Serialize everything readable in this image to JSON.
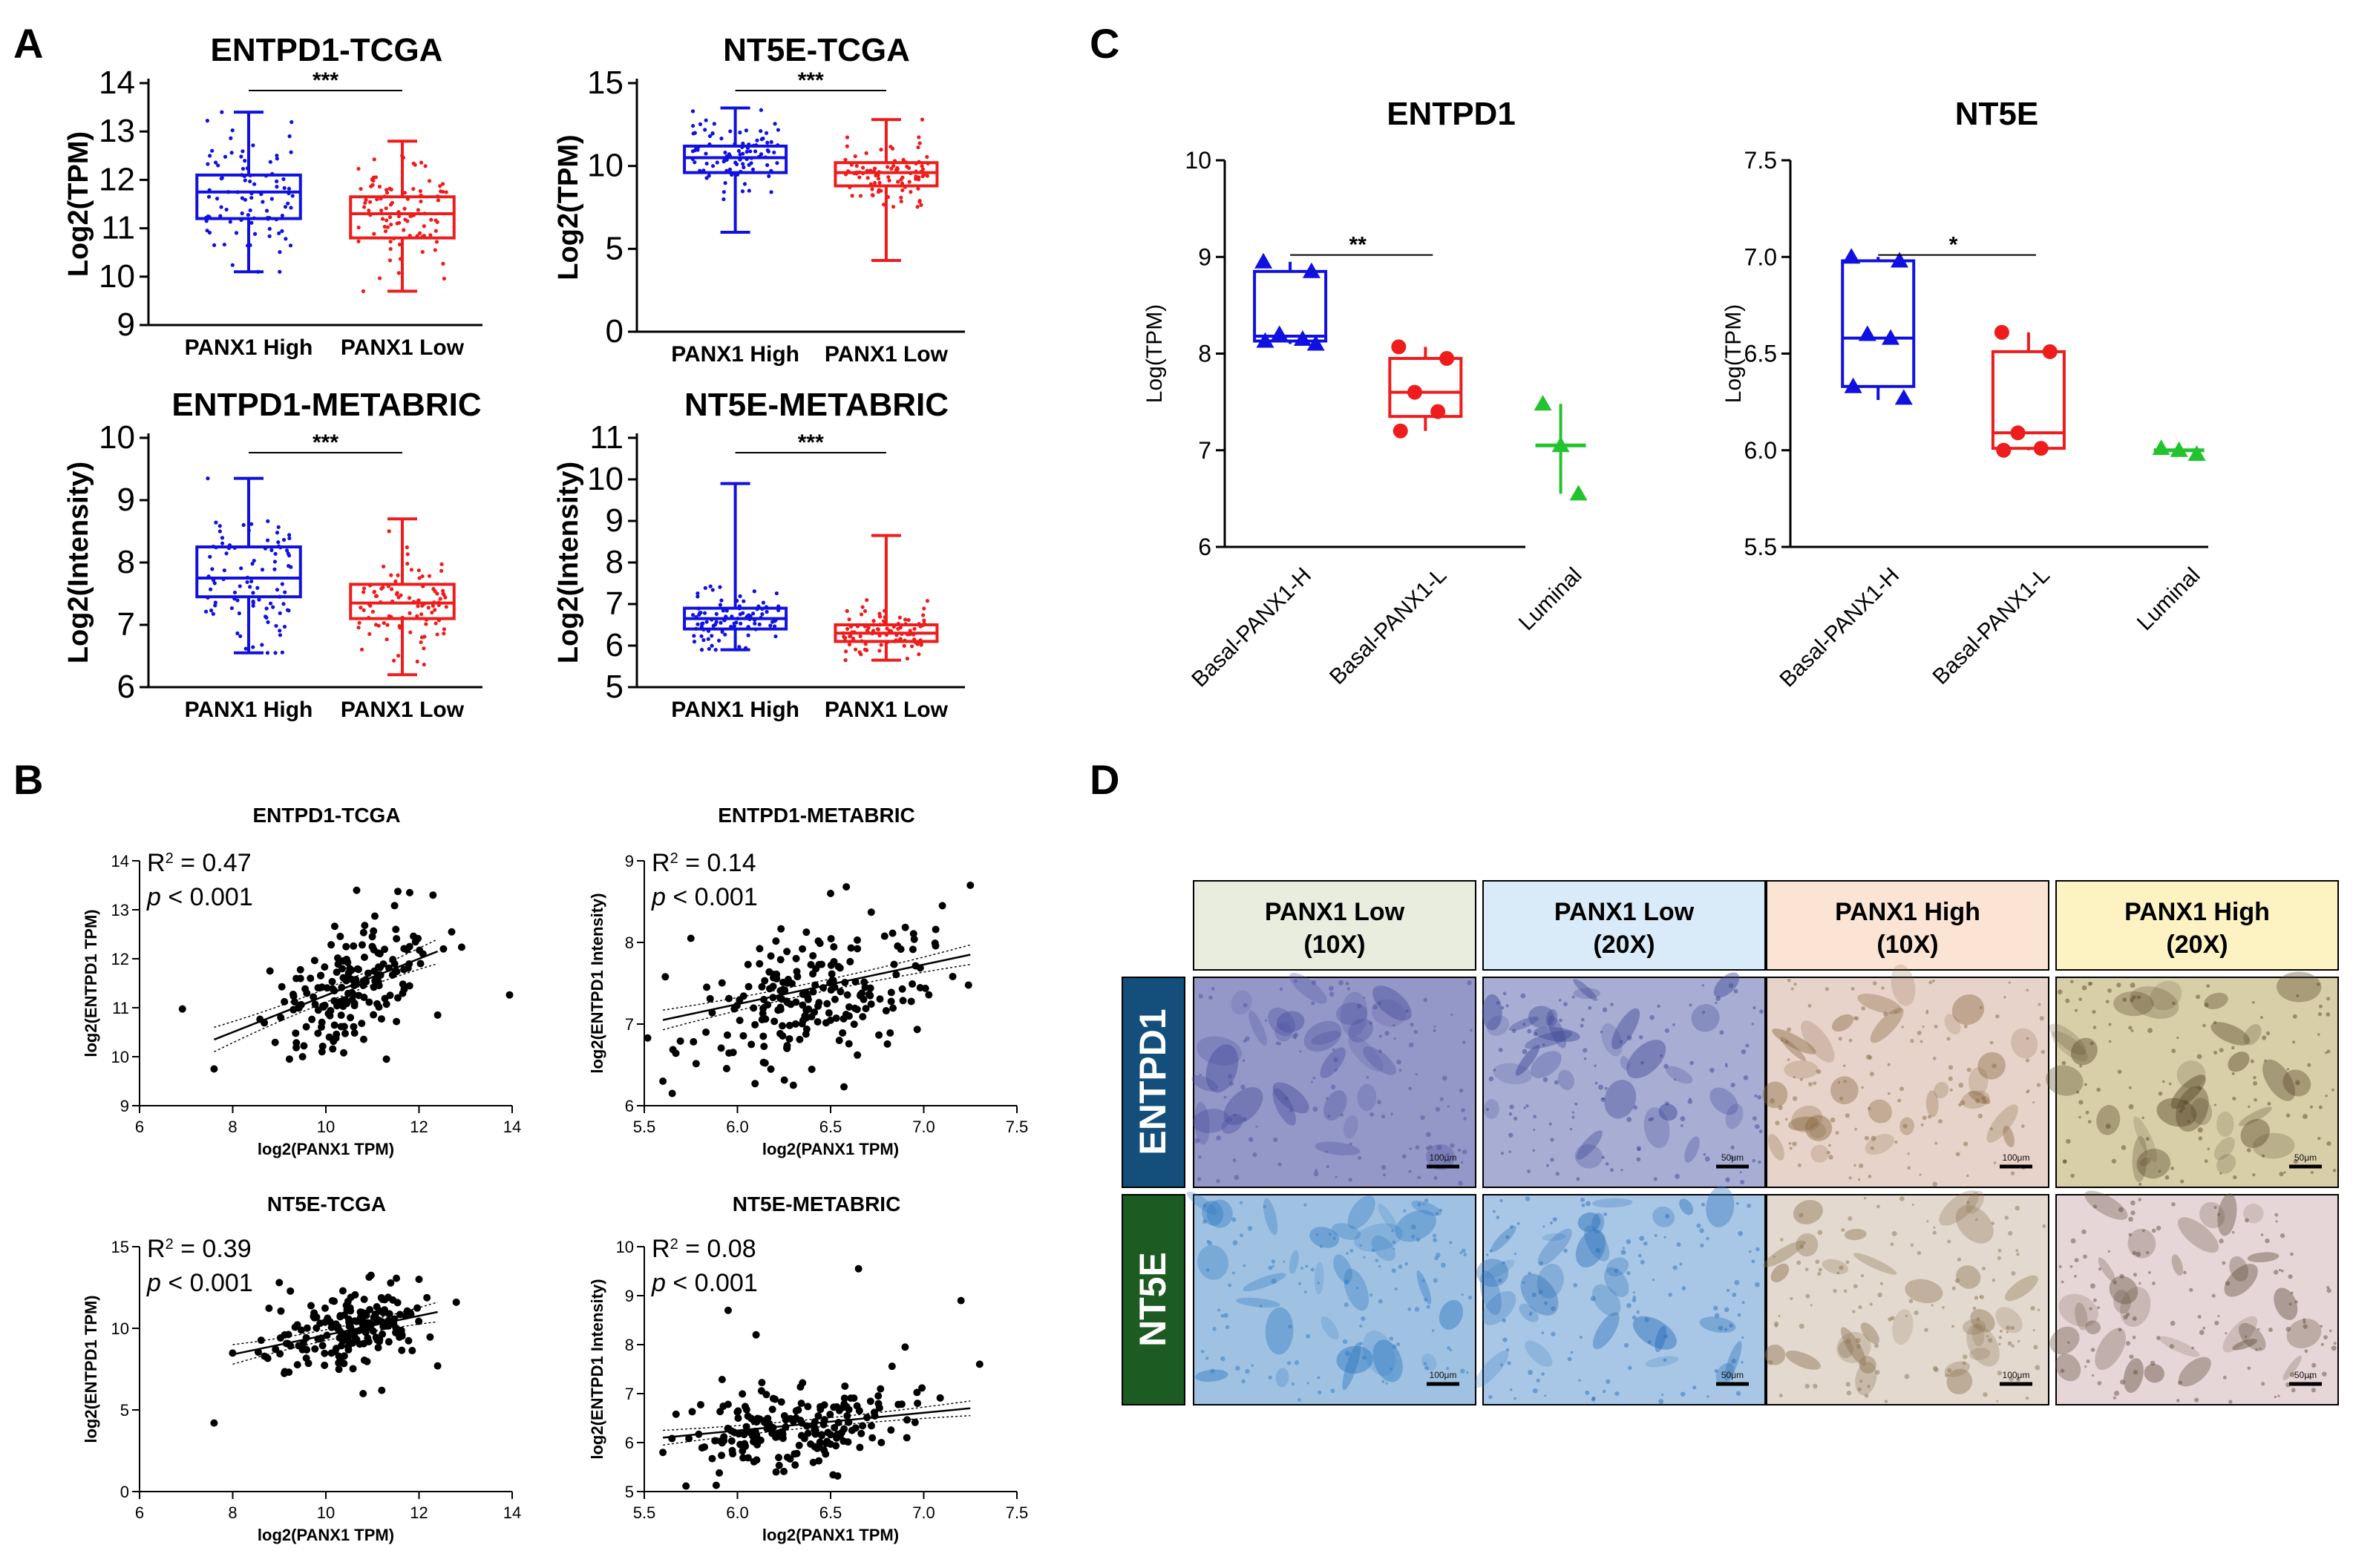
{
  "panel_labels": [
    "A",
    "B",
    "C",
    "D"
  ],
  "colors": {
    "high": "#1010e0",
    "low": "#ee1c1c",
    "luminal": "#22c32e",
    "axis": "#000000"
  },
  "chart_data": [
    {
      "id": "A1",
      "type": "box",
      "title": "ENTPD1-TCGA",
      "xlabel": "",
      "ylabel": "Log2(TPM)",
      "ylim": [
        9,
        14
      ],
      "yticks": [
        "9",
        "10",
        "11",
        "12",
        "13",
        "14"
      ],
      "categories": [
        "PANX1 High",
        "PANX1 Low"
      ],
      "significance": "***",
      "series": [
        {
          "category": "PANX1 High",
          "color": "#1010e0",
          "min": 10.1,
          "q1": 11.2,
          "median": 11.75,
          "q3": 12.1,
          "max": 13.4
        },
        {
          "category": "PANX1 Low",
          "color": "#ee1c1c",
          "min": 9.7,
          "q1": 10.8,
          "median": 11.3,
          "q3": 11.65,
          "max": 12.8
        }
      ]
    },
    {
      "id": "A2",
      "type": "box",
      "title": "NT5E-TCGA",
      "xlabel": "",
      "ylabel": "Log2(TPM)",
      "ylim": [
        0,
        15
      ],
      "yticks": [
        "0",
        "5",
        "10",
        "15"
      ],
      "categories": [
        "PANX1 High",
        "PANX1 Low"
      ],
      "significance": "***",
      "series": [
        {
          "category": "PANX1 High",
          "color": "#1010e0",
          "min": 6.0,
          "q1": 9.6,
          "median": 10.5,
          "q3": 11.2,
          "max": 13.5
        },
        {
          "category": "PANX1 Low",
          "color": "#ee1c1c",
          "min": 4.3,
          "q1": 8.8,
          "median": 9.6,
          "q3": 10.2,
          "max": 12.8
        }
      ]
    },
    {
      "id": "A3",
      "type": "box",
      "title": "ENTPD1-METABRIC",
      "xlabel": "",
      "ylabel": "Log2(Intensity)",
      "ylim": [
        6,
        10
      ],
      "yticks": [
        "6",
        "7",
        "8",
        "9",
        "10"
      ],
      "categories": [
        "PANX1 High",
        "PANX1 Low"
      ],
      "significance": "***",
      "series": [
        {
          "category": "PANX1 High",
          "color": "#1010e0",
          "min": 6.55,
          "q1": 7.45,
          "median": 7.75,
          "q3": 8.25,
          "max": 9.35
        },
        {
          "category": "PANX1 Low",
          "color": "#ee1c1c",
          "min": 6.2,
          "q1": 7.1,
          "median": 7.35,
          "q3": 7.65,
          "max": 8.7
        }
      ]
    },
    {
      "id": "A4",
      "type": "box",
      "title": "NT5E-METABRIC",
      "xlabel": "",
      "ylabel": "Log2(Intensity)",
      "ylim": [
        5,
        11
      ],
      "yticks": [
        "5",
        "6",
        "7",
        "8",
        "9",
        "10",
        "11"
      ],
      "categories": [
        "PANX1 High",
        "PANX1 Low"
      ],
      "significance": "***",
      "series": [
        {
          "category": "PANX1 High",
          "color": "#1010e0",
          "min": 5.9,
          "q1": 6.4,
          "median": 6.65,
          "q3": 6.9,
          "max": 9.9
        },
        {
          "category": "PANX1 Low",
          "color": "#ee1c1c",
          "min": 5.65,
          "q1": 6.1,
          "median": 6.3,
          "q3": 6.5,
          "max": 8.65
        }
      ]
    },
    {
      "id": "B1",
      "type": "scatter",
      "title": "ENTPD1-TCGA",
      "xlabel": "log2(PANX1 TPM)",
      "ylabel": "log2(ENTPD1 TPM)",
      "xlim": [
        6,
        14
      ],
      "ylim": [
        9,
        14
      ],
      "xticks": [
        "6",
        "8",
        "10",
        "12",
        "14"
      ],
      "yticks": [
        "9",
        "10",
        "11",
        "12",
        "13",
        "14"
      ],
      "r2_prefix": "R",
      "r2_value": " = 0.47",
      "p_label": "p",
      "p_value": " < 0.001",
      "fit": {
        "x": [
          7.6,
          12.4
        ],
        "y": [
          10.35,
          12.15
        ],
        "band": 0.25
      },
      "points": {
        "count": 180,
        "x_center": 10.6,
        "x_sd": 0.9,
        "y_intercept": 7.5,
        "slope": 0.375,
        "y_sd": 0.6,
        "seed": 11,
        "extra": [
          [
            7.6,
            9.75
          ],
          [
            12.4,
            10.85
          ],
          [
            12.3,
            13.3
          ],
          [
            8.8,
            11.75
          ],
          [
            9.5,
            10.0
          ],
          [
            11.3,
            9.95
          ],
          [
            11.8,
            13.35
          ]
        ]
      }
    },
    {
      "id": "B2",
      "type": "scatter",
      "title": "ENTPD1-METABRIC",
      "xlabel": "log2(PANX1 TPM)",
      "ylabel": "log2(ENTPD1 Intensity)",
      "xlim": [
        5.5,
        7.5
      ],
      "ylim": [
        6,
        9
      ],
      "xticks": [
        "5.5",
        "6.0",
        "6.5",
        "7.0",
        "7.5"
      ],
      "yticks": [
        "6",
        "7",
        "8",
        "9"
      ],
      "r2_prefix": "R",
      "r2_value": " = 0.14",
      "p_label": "p",
      "p_value": " < 0.001",
      "fit": {
        "x": [
          5.6,
          7.25
        ],
        "y": [
          7.05,
          7.85
        ],
        "band": 0.12
      },
      "points": {
        "count": 210,
        "x_center": 6.4,
        "x_sd": 0.35,
        "y_intercept": 4.3,
        "slope": 0.48,
        "y_sd": 0.42,
        "seed": 23,
        "extra": [
          [
            5.6,
            6.3
          ],
          [
            5.65,
            6.15
          ],
          [
            5.75,
            8.05
          ],
          [
            7.25,
            8.7
          ],
          [
            6.3,
            6.25
          ],
          [
            6.5,
            8.6
          ],
          [
            7.1,
            8.45
          ]
        ]
      }
    },
    {
      "id": "B3",
      "type": "scatter",
      "title": "NT5E-TCGA",
      "xlabel": "log2(PANX1 TPM)",
      "ylabel": "log2(ENTPD1 TPM)",
      "xlim": [
        6,
        14
      ],
      "ylim": [
        0,
        15
      ],
      "xticks": [
        "6",
        "8",
        "10",
        "12",
        "14"
      ],
      "yticks": [
        "0",
        "5",
        "10",
        "15"
      ],
      "r2_prefix": "R",
      "r2_value": " = 0.39",
      "p_label": "p",
      "p_value": " < 0.001",
      "fit": {
        "x": [
          8.0,
          12.4
        ],
        "y": [
          8.4,
          11.0
        ],
        "band": 0.6
      },
      "points": {
        "count": 180,
        "x_center": 10.5,
        "x_sd": 0.85,
        "y_intercept": 3.6,
        "slope": 0.6,
        "y_sd": 1.1,
        "seed": 37,
        "extra": [
          [
            7.6,
            4.2
          ],
          [
            12.4,
            7.7
          ],
          [
            11.2,
            6.2
          ],
          [
            12.0,
            13.0
          ],
          [
            9.0,
            12.8
          ],
          [
            10.8,
            6.0
          ]
        ]
      }
    },
    {
      "id": "B4",
      "type": "scatter",
      "title": "NT5E-METABRIC",
      "xlabel": "log2(PANX1 TPM)",
      "ylabel": "log2(ENTPD1 Intensity)",
      "xlim": [
        5.5,
        7.5
      ],
      "ylim": [
        5,
        10
      ],
      "xticks": [
        "5.5",
        "6.0",
        "6.5",
        "7.0",
        "7.5"
      ],
      "yticks": [
        "5",
        "6",
        "7",
        "8",
        "9",
        "10"
      ],
      "r2_prefix": "R",
      "r2_value": " = 0.08",
      "p_label": "p",
      "p_value": " < 0.001",
      "fit": {
        "x": [
          5.6,
          7.25
        ],
        "y": [
          6.1,
          6.7
        ],
        "band": 0.15
      },
      "points": {
        "count": 200,
        "x_center": 6.35,
        "x_sd": 0.33,
        "y_intercept": 4.0,
        "slope": 0.37,
        "y_sd": 0.38,
        "seed": 53,
        "extra": [
          [
            6.65,
            9.55
          ],
          [
            7.2,
            8.9
          ],
          [
            5.95,
            8.7
          ],
          [
            6.1,
            8.2
          ],
          [
            6.9,
            7.95
          ],
          [
            5.6,
            5.8
          ],
          [
            7.3,
            7.6
          ]
        ]
      }
    },
    {
      "id": "C1",
      "type": "box_points",
      "title": "ENTPD1",
      "xlabel": "",
      "ylabel": "Log(TPM)",
      "ylim": [
        6,
        10
      ],
      "yticks": [
        "6",
        "7",
        "8",
        "9",
        "10"
      ],
      "categories": [
        "Basal-PANX1-H",
        "Basal-PANX1-L",
        "Luminal"
      ],
      "significance": "**",
      "series": [
        {
          "category": "Basal-PANX1-H",
          "color": "#1010e0",
          "marker": "triangle",
          "min": 8.1,
          "q1": 8.13,
          "median": 8.18,
          "q3": 8.85,
          "max": 8.95,
          "points": [
            8.95,
            8.85,
            8.2,
            8.15,
            8.13,
            8.1
          ]
        },
        {
          "category": "Basal-PANX1-L",
          "color": "#ee1c1c",
          "marker": "circle",
          "min": 7.2,
          "q1": 7.35,
          "median": 7.6,
          "q3": 7.95,
          "max": 8.07,
          "points": [
            8.07,
            7.95,
            7.6,
            7.4,
            7.2
          ]
        },
        {
          "category": "Luminal",
          "color": "#22c32e",
          "marker": "triangle",
          "min": 6.55,
          "median": 7.05,
          "max": 7.48,
          "points": [
            7.48,
            7.05,
            6.55
          ]
        }
      ]
    },
    {
      "id": "C2",
      "type": "box_points",
      "title": "NT5E",
      "xlabel": "",
      "ylabel": "Log(TPM)",
      "ylim": [
        5.5,
        7.5
      ],
      "yticks": [
        "5.5",
        "6.0",
        "6.5",
        "7.0",
        "7.5"
      ],
      "categories": [
        "Basal-PANX1-H",
        "Basal-PANX1-L",
        "Luminal"
      ],
      "significance": "*",
      "series": [
        {
          "category": "Basal-PANX1-H",
          "color": "#1010e0",
          "marker": "triangle",
          "min": 6.26,
          "q1": 6.33,
          "median": 6.58,
          "q3": 6.98,
          "max": 7.0,
          "points": [
            7.0,
            6.98,
            6.6,
            6.58,
            6.33,
            6.27
          ]
        },
        {
          "category": "Basal-PANX1-L",
          "color": "#ee1c1c",
          "marker": "circle",
          "min": 6.0,
          "q1": 6.01,
          "median": 6.09,
          "q3": 6.51,
          "max": 6.61,
          "points": [
            6.61,
            6.51,
            6.09,
            6.01,
            6.0
          ]
        },
        {
          "category": "Luminal",
          "color": "#22c32e",
          "marker": "triangle",
          "min": 5.98,
          "median": 6.0,
          "max": 6.01,
          "points": [
            6.01,
            6.0,
            5.98
          ]
        }
      ]
    }
  ],
  "histology": {
    "columns": [
      {
        "line1": "PANX1 Low",
        "line2": "(10X)",
        "bg": "#e8edde"
      },
      {
        "line1": "PANX1 Low",
        "line2": "(20X)",
        "bg": "#d9ebf8"
      },
      {
        "line1": "PANX1 High",
        "line2": "(10X)",
        "bg": "#fbe4d3"
      },
      {
        "line1": "PANX1 High",
        "line2": "(20X)",
        "bg": "#fcf2c2"
      }
    ],
    "rows": [
      {
        "label": "ENTPD1",
        "bg": "#134f7a",
        "cells": [
          {
            "scale": "100μm",
            "stain": "#9498c8",
            "tissue": "#4a4f9e"
          },
          {
            "scale": "50μm",
            "stain": "#a7add3",
            "tissue": "#3c4694"
          },
          {
            "scale": "100μm",
            "stain": "#e7d3c9",
            "tissue": "#8a6a45"
          },
          {
            "scale": "50μm",
            "stain": "#d8cfa9",
            "tissue": "#5a4a2c"
          }
        ]
      },
      {
        "label": "NT5E",
        "bg": "#1c5b22",
        "cells": [
          {
            "scale": "100μm",
            "stain": "#9fc2e3",
            "tissue": "#2f79c0"
          },
          {
            "scale": "50μm",
            "stain": "#a8c7e6",
            "tissue": "#2c6fb8"
          },
          {
            "scale": "100μm",
            "stain": "#e4d9cf",
            "tissue": "#8b7452"
          },
          {
            "scale": "50μm",
            "stain": "#e7d6d8",
            "tissue": "#62503d"
          }
        ]
      }
    ]
  }
}
